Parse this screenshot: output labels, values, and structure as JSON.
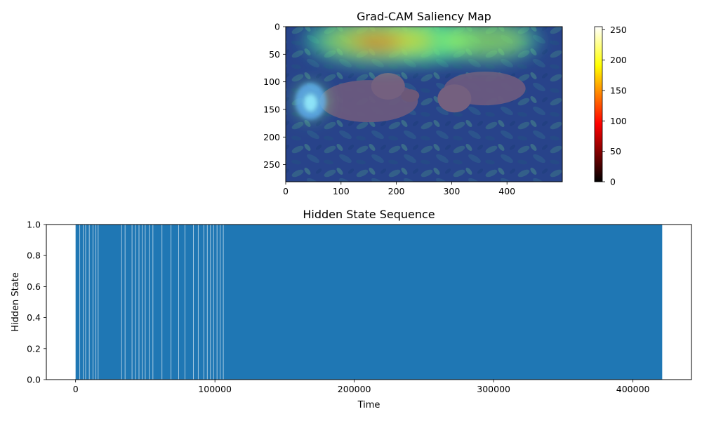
{
  "chart_data": [
    {
      "type": "heatmap",
      "title": "Grad-CAM Saliency Map",
      "xlabel": "",
      "ylabel": "",
      "xlim": [
        0,
        500
      ],
      "ylim": [
        281,
        0
      ],
      "xticks": [
        0,
        100,
        200,
        300,
        400
      ],
      "yticks": [
        0,
        50,
        100,
        150,
        200,
        250
      ],
      "image_description_content": "photo of two brown puppies lying in green leafy plants with a jet colormap saliency overlay",
      "hotspots": [
        {
          "x": 255,
          "y": 25,
          "rx": 70,
          "ry": 30,
          "intensity": 1.0
        },
        {
          "x": 170,
          "y": 25,
          "rx": 110,
          "ry": 35,
          "intensity": 0.65
        },
        {
          "x": 360,
          "y": 25,
          "rx": 80,
          "ry": 30,
          "intensity": 0.55
        },
        {
          "x": 45,
          "y": 135,
          "rx": 22,
          "ry": 25,
          "intensity": 0.5
        }
      ],
      "colorbar": {
        "colormap": "hot",
        "range": [
          0,
          255
        ],
        "ticks": [
          0,
          50,
          100,
          150,
          200,
          250
        ]
      }
    },
    {
      "type": "bar",
      "title": "Hidden State Sequence",
      "xlabel": "Time",
      "ylabel": "Hidden State",
      "xlim": [
        -21000,
        442000
      ],
      "ylim": [
        0,
        1
      ],
      "xticks": [
        0,
        100000,
        200000,
        300000,
        400000
      ],
      "yticks": [
        0.0,
        0.2,
        0.4,
        0.6,
        0.8,
        1.0
      ],
      "ytick_labels": [
        "0.0",
        "0.2",
        "0.4",
        "0.6",
        "0.8",
        "1.0"
      ],
      "color": "#1f77b4",
      "filled_span": [
        0,
        421000
      ],
      "gaps_approx": [
        3000,
        5500,
        7200,
        9800,
        12500,
        14600,
        16200,
        33000,
        35500,
        40500,
        43000,
        45500,
        47800,
        50000,
        52800,
        55500,
        62000,
        68500,
        74000,
        78500,
        84500,
        88000,
        92000,
        94500,
        96800,
        99000,
        101500,
        103800,
        106000
      ]
    }
  ]
}
